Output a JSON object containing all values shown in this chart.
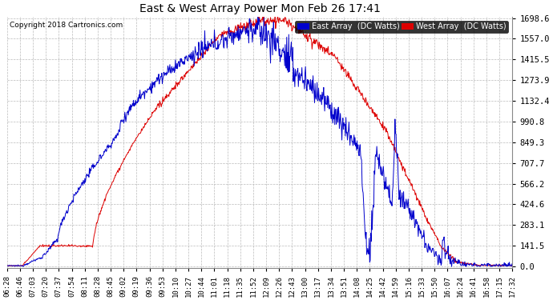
{
  "title": "East & West Array Power Mon Feb 26 17:41",
  "copyright": "Copyright 2018 Cartronics.com",
  "legend_east": "East Array  (DC Watts)",
  "legend_west": "West Array  (DC Watts)",
  "east_color": "#0000cc",
  "west_color": "#dd0000",
  "background_color": "#ffffff",
  "grid_color": "#bbbbbb",
  "yticks": [
    0.0,
    141.5,
    283.1,
    424.6,
    566.2,
    707.7,
    849.3,
    990.8,
    1132.4,
    1273.9,
    1415.5,
    1557.0,
    1698.6
  ],
  "xtick_labels": [
    "06:28",
    "06:46",
    "07:03",
    "07:20",
    "07:37",
    "07:54",
    "08:11",
    "08:28",
    "08:45",
    "09:02",
    "09:19",
    "09:36",
    "09:53",
    "10:10",
    "10:27",
    "10:44",
    "11:01",
    "11:18",
    "11:35",
    "11:52",
    "12:09",
    "12:26",
    "12:43",
    "13:00",
    "13:17",
    "13:34",
    "13:51",
    "14:08",
    "14:25",
    "14:42",
    "14:59",
    "15:16",
    "15:33",
    "15:50",
    "16:07",
    "16:24",
    "16:41",
    "16:58",
    "17:15",
    "17:32"
  ],
  "ymax": 1698.6,
  "ymin": 0.0,
  "legend_east_bg": "#0000cc",
  "legend_west_bg": "#dd0000",
  "legend_text_color": "#ffffff"
}
